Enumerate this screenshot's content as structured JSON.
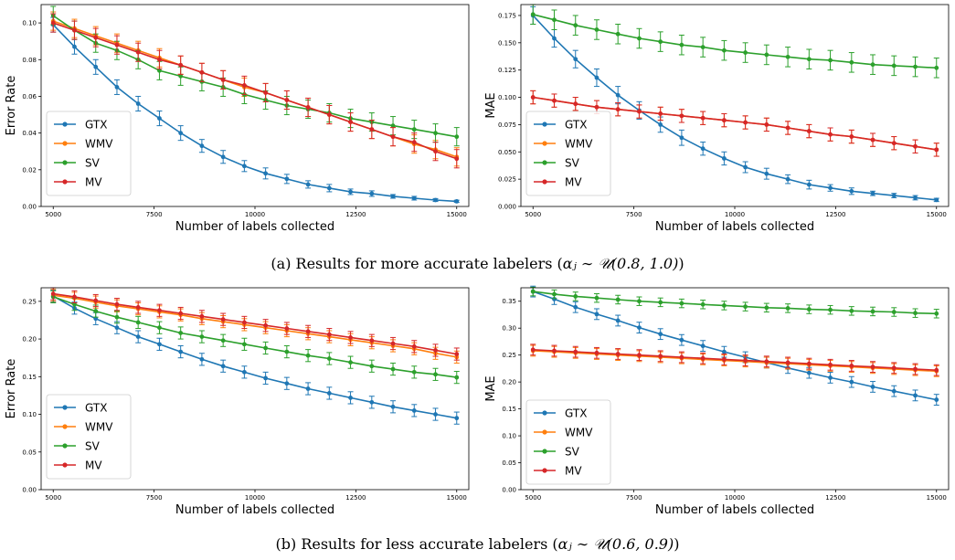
{
  "captions": {
    "a": {
      "prefix": "(a) Results for more accurate labelers (",
      "math": "αⱼ ∼ 𝒰(0.8, 1.0)",
      "suffix": ")"
    },
    "b": {
      "prefix": "(b) Results for less accurate labelers (",
      "math": "αⱼ ∼ 𝒰(0.6, 0.9)",
      "suffix": ")"
    }
  },
  "colors": {
    "GTX": "#1f77b4",
    "WMV": "#ff7f0e",
    "SV": "#2ca02c",
    "MV": "#d62728"
  },
  "chart_data": [
    {
      "id": "a-error",
      "type": "line",
      "xlabel": "Number of labels collected",
      "ylabel": "Error Rate",
      "xlim": [
        4700,
        15300
      ],
      "ylim": [
        0,
        0.11
      ],
      "xticks": [
        5000,
        7500,
        10000,
        12500,
        15000
      ],
      "xtick_labels": [
        "5000",
        "7500",
        "10000",
        "12500",
        "15000"
      ],
      "yticks": [
        0,
        0.02,
        0.04,
        0.06,
        0.08,
        0.1
      ],
      "ytick_labels": [
        "0.00",
        "0.02",
        "0.04",
        "0.06",
        "0.08",
        "0.10"
      ],
      "legend": "center-left",
      "x": [
        5000,
        5526,
        6053,
        6579,
        7105,
        7632,
        8158,
        8684,
        9211,
        9737,
        10263,
        10789,
        11316,
        11842,
        12368,
        12895,
        13421,
        13947,
        14474,
        15000
      ],
      "series": [
        {
          "name": "GTX",
          "values": [
            0.099,
            0.087,
            0.076,
            0.065,
            0.056,
            0.048,
            0.04,
            0.033,
            0.027,
            0.022,
            0.018,
            0.015,
            0.012,
            0.01,
            0.008,
            0.007,
            0.0055,
            0.0045,
            0.0035,
            0.0028
          ],
          "err": [
            0.004,
            0.004,
            0.004,
            0.004,
            0.004,
            0.004,
            0.004,
            0.0035,
            0.0035,
            0.003,
            0.003,
            0.0025,
            0.002,
            0.002,
            0.0015,
            0.0015,
            0.001,
            0.001,
            0.0008,
            0.0006
          ]
        },
        {
          "name": "WMV",
          "values": [
            0.101,
            0.097,
            0.093,
            0.089,
            0.085,
            0.081,
            0.077,
            0.073,
            0.069,
            0.065,
            0.062,
            0.058,
            0.054,
            0.05,
            0.046,
            0.042,
            0.038,
            0.034,
            0.031,
            0.027
          ],
          "err": [
            0.005,
            0.005,
            0.005,
            0.005,
            0.005,
            0.005,
            0.005,
            0.005,
            0.005,
            0.005,
            0.005,
            0.005,
            0.005,
            0.005,
            0.005,
            0.005,
            0.005,
            0.005,
            0.005,
            0.005
          ]
        },
        {
          "name": "SV",
          "values": [
            0.104,
            0.096,
            0.089,
            0.085,
            0.08,
            0.074,
            0.071,
            0.068,
            0.065,
            0.061,
            0.058,
            0.055,
            0.053,
            0.051,
            0.048,
            0.046,
            0.044,
            0.042,
            0.04,
            0.038
          ],
          "err": [
            0.005,
            0.005,
            0.005,
            0.005,
            0.005,
            0.005,
            0.005,
            0.005,
            0.005,
            0.005,
            0.005,
            0.005,
            0.005,
            0.005,
            0.005,
            0.005,
            0.005,
            0.005,
            0.005,
            0.005
          ]
        },
        {
          "name": "MV",
          "values": [
            0.1,
            0.096,
            0.092,
            0.088,
            0.084,
            0.08,
            0.077,
            0.073,
            0.069,
            0.066,
            0.062,
            0.058,
            0.054,
            0.05,
            0.046,
            0.042,
            0.038,
            0.035,
            0.03,
            0.026
          ],
          "err": [
            0.005,
            0.005,
            0.005,
            0.005,
            0.005,
            0.005,
            0.005,
            0.005,
            0.005,
            0.005,
            0.005,
            0.005,
            0.005,
            0.005,
            0.005,
            0.005,
            0.005,
            0.005,
            0.005,
            0.005
          ]
        }
      ]
    },
    {
      "id": "a-mae",
      "type": "line",
      "xlabel": "Number of labels collected",
      "ylabel": "MAE",
      "xlim": [
        4700,
        15300
      ],
      "ylim": [
        0,
        0.185
      ],
      "xticks": [
        5000,
        7500,
        10000,
        12500,
        15000
      ],
      "xtick_labels": [
        "5000",
        "7500",
        "10000",
        "12500",
        "15000"
      ],
      "yticks": [
        0,
        0.025,
        0.05,
        0.075,
        0.1,
        0.125,
        0.15,
        0.175
      ],
      "ytick_labels": [
        "0.000",
        "0.025",
        "0.050",
        "0.075",
        "0.100",
        "0.125",
        "0.150",
        "0.175"
      ],
      "legend": "center-left",
      "x": [
        5000,
        5526,
        6053,
        6579,
        7105,
        7632,
        8158,
        8684,
        9211,
        9737,
        10263,
        10789,
        11316,
        11842,
        12368,
        12895,
        13421,
        13947,
        14474,
        15000
      ],
      "series": [
        {
          "name": "GTX",
          "values": [
            0.175,
            0.154,
            0.135,
            0.118,
            0.102,
            0.088,
            0.075,
            0.063,
            0.053,
            0.044,
            0.036,
            0.03,
            0.025,
            0.02,
            0.017,
            0.014,
            0.012,
            0.01,
            0.008,
            0.006
          ],
          "err": [
            0.008,
            0.008,
            0.008,
            0.008,
            0.008,
            0.008,
            0.007,
            0.007,
            0.006,
            0.006,
            0.005,
            0.005,
            0.004,
            0.004,
            0.003,
            0.003,
            0.002,
            0.002,
            0.002,
            0.0015
          ]
        },
        {
          "name": "WMV",
          "values": [
            0.1,
            0.097,
            0.094,
            0.091,
            0.089,
            0.087,
            0.085,
            0.083,
            0.081,
            0.079,
            0.077,
            0.075,
            0.072,
            0.069,
            0.066,
            0.064,
            0.061,
            0.058,
            0.055,
            0.052
          ],
          "err": [
            0.006,
            0.006,
            0.006,
            0.006,
            0.006,
            0.006,
            0.006,
            0.006,
            0.006,
            0.006,
            0.006,
            0.006,
            0.006,
            0.006,
            0.006,
            0.006,
            0.006,
            0.006,
            0.006,
            0.006
          ]
        },
        {
          "name": "SV",
          "values": [
            0.176,
            0.171,
            0.166,
            0.162,
            0.158,
            0.154,
            0.151,
            0.148,
            0.146,
            0.143,
            0.141,
            0.139,
            0.137,
            0.135,
            0.134,
            0.132,
            0.13,
            0.129,
            0.128,
            0.127
          ],
          "err": [
            0.009,
            0.009,
            0.009,
            0.009,
            0.009,
            0.009,
            0.009,
            0.009,
            0.009,
            0.009,
            0.009,
            0.009,
            0.009,
            0.009,
            0.009,
            0.009,
            0.009,
            0.009,
            0.009,
            0.009
          ]
        },
        {
          "name": "MV",
          "values": [
            0.1,
            0.097,
            0.094,
            0.091,
            0.089,
            0.087,
            0.085,
            0.083,
            0.081,
            0.079,
            0.077,
            0.075,
            0.072,
            0.069,
            0.066,
            0.064,
            0.061,
            0.058,
            0.055,
            0.052
          ],
          "err": [
            0.006,
            0.006,
            0.006,
            0.006,
            0.006,
            0.006,
            0.006,
            0.006,
            0.006,
            0.006,
            0.006,
            0.006,
            0.006,
            0.006,
            0.006,
            0.006,
            0.006,
            0.006,
            0.006,
            0.006
          ]
        }
      ]
    },
    {
      "id": "b-error",
      "type": "line",
      "xlabel": "Number of labels collected",
      "ylabel": "Error Rate",
      "xlim": [
        4700,
        15300
      ],
      "ylim": [
        0,
        0.268
      ],
      "xticks": [
        5000,
        7500,
        10000,
        12500,
        15000
      ],
      "xtick_labels": [
        "5000",
        "7500",
        "10000",
        "12500",
        "15000"
      ],
      "yticks": [
        0,
        0.05,
        0.1,
        0.15,
        0.2,
        0.25
      ],
      "ytick_labels": [
        "0.00",
        "0.05",
        "0.10",
        "0.15",
        "0.20",
        "0.25"
      ],
      "legend": "center-left",
      "x": [
        5000,
        5526,
        6053,
        6579,
        7105,
        7632,
        8158,
        8684,
        9211,
        9737,
        10263,
        10789,
        11316,
        11842,
        12368,
        12895,
        13421,
        13947,
        14474,
        15000
      ],
      "series": [
        {
          "name": "GTX",
          "values": [
            0.257,
            0.241,
            0.227,
            0.215,
            0.203,
            0.193,
            0.183,
            0.173,
            0.164,
            0.156,
            0.148,
            0.141,
            0.134,
            0.128,
            0.122,
            0.116,
            0.11,
            0.105,
            0.1,
            0.095
          ],
          "err": [
            0.008,
            0.008,
            0.008,
            0.008,
            0.008,
            0.008,
            0.008,
            0.008,
            0.008,
            0.008,
            0.008,
            0.008,
            0.008,
            0.008,
            0.008,
            0.008,
            0.008,
            0.008,
            0.008,
            0.008
          ]
        },
        {
          "name": "WMV",
          "values": [
            0.258,
            0.254,
            0.249,
            0.244,
            0.24,
            0.236,
            0.232,
            0.227,
            0.223,
            0.219,
            0.215,
            0.211,
            0.207,
            0.203,
            0.199,
            0.195,
            0.191,
            0.187,
            0.181,
            0.176
          ],
          "err": [
            0.008,
            0.008,
            0.008,
            0.008,
            0.008,
            0.008,
            0.008,
            0.008,
            0.008,
            0.008,
            0.008,
            0.008,
            0.008,
            0.008,
            0.008,
            0.008,
            0.008,
            0.008,
            0.008,
            0.008
          ]
        },
        {
          "name": "SV",
          "values": [
            0.256,
            0.246,
            0.237,
            0.229,
            0.222,
            0.215,
            0.208,
            0.203,
            0.198,
            0.193,
            0.188,
            0.183,
            0.178,
            0.174,
            0.169,
            0.164,
            0.16,
            0.156,
            0.153,
            0.149
          ],
          "err": [
            0.008,
            0.008,
            0.008,
            0.008,
            0.008,
            0.008,
            0.008,
            0.008,
            0.008,
            0.008,
            0.008,
            0.008,
            0.008,
            0.008,
            0.008,
            0.008,
            0.008,
            0.008,
            0.008,
            0.008
          ]
        },
        {
          "name": "MV",
          "values": [
            0.26,
            0.256,
            0.251,
            0.246,
            0.242,
            0.238,
            0.234,
            0.23,
            0.226,
            0.222,
            0.218,
            0.214,
            0.21,
            0.206,
            0.202,
            0.198,
            0.194,
            0.19,
            0.185,
            0.18
          ],
          "err": [
            0.008,
            0.008,
            0.008,
            0.008,
            0.008,
            0.008,
            0.008,
            0.008,
            0.008,
            0.008,
            0.008,
            0.008,
            0.008,
            0.008,
            0.008,
            0.008,
            0.008,
            0.008,
            0.008,
            0.008
          ]
        }
      ]
    },
    {
      "id": "b-mae",
      "type": "line",
      "xlabel": "Number of labels collected",
      "ylabel": "MAE",
      "xlim": [
        4700,
        15300
      ],
      "ylim": [
        0,
        0.375
      ],
      "xticks": [
        5000,
        7500,
        10000,
        12500,
        15000
      ],
      "xtick_labels": [
        "5000",
        "7500",
        "10000",
        "12500",
        "15000"
      ],
      "yticks": [
        0,
        0.05,
        0.1,
        0.15,
        0.2,
        0.25,
        0.3,
        0.35
      ],
      "ytick_labels": [
        "0.00",
        "0.05",
        "0.10",
        "0.15",
        "0.20",
        "0.25",
        "0.30",
        "0.35"
      ],
      "legend": "lower-left",
      "x": [
        5000,
        5526,
        6053,
        6579,
        7105,
        7632,
        8158,
        8684,
        9211,
        9737,
        10263,
        10789,
        11316,
        11842,
        12368,
        12895,
        13421,
        13947,
        14474,
        15000
      ],
      "series": [
        {
          "name": "GTX",
          "values": [
            0.368,
            0.354,
            0.339,
            0.326,
            0.314,
            0.301,
            0.289,
            0.278,
            0.267,
            0.256,
            0.246,
            0.236,
            0.226,
            0.217,
            0.208,
            0.2,
            0.191,
            0.183,
            0.175,
            0.167
          ],
          "err": [
            0.01,
            0.01,
            0.01,
            0.01,
            0.01,
            0.01,
            0.01,
            0.01,
            0.01,
            0.01,
            0.01,
            0.01,
            0.01,
            0.01,
            0.01,
            0.01,
            0.01,
            0.01,
            0.01,
            0.01
          ]
        },
        {
          "name": "WMV",
          "values": [
            0.258,
            0.256,
            0.254,
            0.252,
            0.25,
            0.248,
            0.246,
            0.244,
            0.242,
            0.24,
            0.238,
            0.236,
            0.234,
            0.232,
            0.23,
            0.228,
            0.226,
            0.224,
            0.222,
            0.22
          ],
          "err": [
            0.01,
            0.01,
            0.01,
            0.01,
            0.01,
            0.01,
            0.01,
            0.01,
            0.01,
            0.01,
            0.01,
            0.01,
            0.01,
            0.01,
            0.01,
            0.01,
            0.01,
            0.01,
            0.01,
            0.01
          ]
        },
        {
          "name": "SV",
          "values": [
            0.368,
            0.363,
            0.359,
            0.356,
            0.353,
            0.35,
            0.348,
            0.346,
            0.344,
            0.342,
            0.34,
            0.338,
            0.337,
            0.335,
            0.334,
            0.332,
            0.331,
            0.33,
            0.328,
            0.327
          ],
          "err": [
            0.008,
            0.008,
            0.008,
            0.008,
            0.008,
            0.008,
            0.008,
            0.008,
            0.008,
            0.008,
            0.008,
            0.008,
            0.008,
            0.008,
            0.008,
            0.008,
            0.008,
            0.008,
            0.008,
            0.008
          ]
        },
        {
          "name": "MV",
          "values": [
            0.26,
            0.258,
            0.256,
            0.254,
            0.252,
            0.25,
            0.248,
            0.246,
            0.244,
            0.242,
            0.24,
            0.238,
            0.236,
            0.234,
            0.232,
            0.23,
            0.228,
            0.226,
            0.224,
            0.222
          ],
          "err": [
            0.01,
            0.01,
            0.01,
            0.01,
            0.01,
            0.01,
            0.01,
            0.01,
            0.01,
            0.01,
            0.01,
            0.01,
            0.01,
            0.01,
            0.01,
            0.01,
            0.01,
            0.01,
            0.01,
            0.01
          ]
        }
      ]
    }
  ]
}
